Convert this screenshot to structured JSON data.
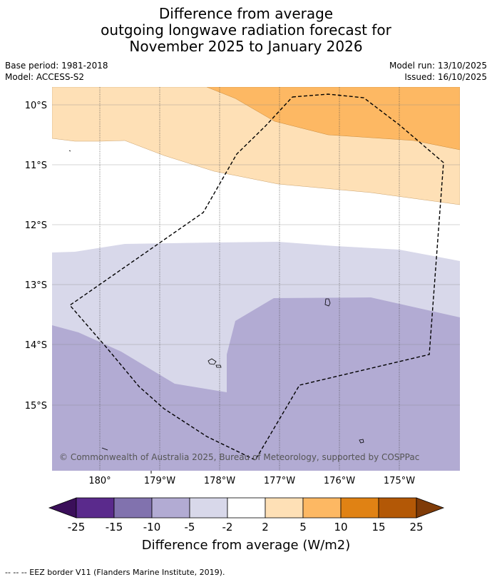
{
  "title": {
    "line1": "Difference from average",
    "line2": "outgoing longwave radiation forecast for",
    "line3": "November 2025 to January 2026"
  },
  "meta": {
    "base_period": "Base period: 1981-2018",
    "model": "Model: ACCESS-S2",
    "model_run": "Model run: 13/10/2025",
    "issued": "Issued: 16/10/2025"
  },
  "map": {
    "lat_labels": [
      "10°S",
      "11°S",
      "12°S",
      "13°S",
      "14°S",
      "15°S"
    ],
    "lon_labels": [
      "180°",
      "179°W",
      "178°W",
      "177°W",
      "176°W",
      "175°W"
    ],
    "copyright": "© Commonwealth of Australia 2025, Bureau of Meteorology, supported by COSPPac"
  },
  "colorbar": {
    "labels": [
      "-25",
      "-15",
      "-10",
      "-5",
      "-2",
      "2",
      "5",
      "10",
      "15",
      "25"
    ],
    "colors": [
      "#3b0f5a",
      "#5a2a8c",
      "#8172ae",
      "#b2abd3",
      "#d8d8ea",
      "#ffffff",
      "#fee0b6",
      "#fdb863",
      "#e08214",
      "#b35806",
      "#7f3b08"
    ],
    "label": "Difference from average (W/m2)"
  },
  "footnote": "--  --  -- EEZ border V11 (Flanders Marine Institute, 2019)."
}
